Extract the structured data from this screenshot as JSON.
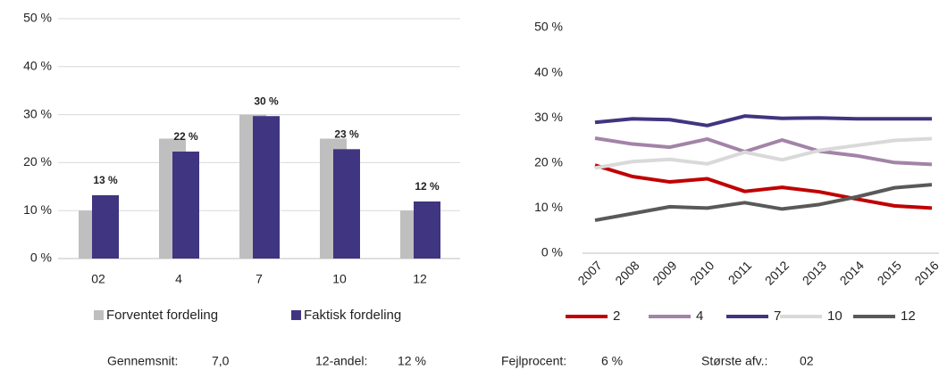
{
  "chart_data": [
    {
      "type": "bar",
      "categories": [
        "02",
        "4",
        "7",
        "10",
        "12"
      ],
      "series": [
        {
          "name": "Forventet fordeling",
          "color": "#bfbfbf",
          "values": [
            10,
            25,
            30,
            25,
            10
          ]
        },
        {
          "name": "Faktisk fordeling",
          "color": "#3f3580",
          "values": [
            13.2,
            22.3,
            29.7,
            22.8,
            11.9
          ],
          "value_labels": [
            "13 %",
            "22 %",
            "30 %",
            "23 %",
            "12 %"
          ]
        }
      ],
      "ylim": [
        0,
        50
      ],
      "yticks": [
        {
          "value": 0,
          "label": "0 %"
        },
        {
          "value": 10,
          "label": "10 %"
        },
        {
          "value": 20,
          "label": "20 %"
        },
        {
          "value": 30,
          "label": "30 %"
        },
        {
          "value": 40,
          "label": "40 %"
        },
        {
          "value": 50,
          "label": "50 %"
        }
      ],
      "grid": true,
      "legend": "bottom"
    },
    {
      "type": "line",
      "categories": [
        "2007",
        "2008",
        "2009",
        "2010",
        "2011",
        "2012",
        "2013",
        "2014",
        "2015",
        "2016"
      ],
      "series": [
        {
          "name": "2",
          "color": "#c00000",
          "values": [
            19.5,
            17,
            15.8,
            16.5,
            13.7,
            14.6,
            13.6,
            12,
            10.5,
            10
          ]
        },
        {
          "name": "4",
          "color": "#a383a8",
          "values": [
            25.5,
            24.2,
            23.5,
            25.3,
            22.5,
            25.1,
            22.6,
            21.6,
            20.1,
            19.7
          ]
        },
        {
          "name": "7",
          "color": "#3f3580",
          "values": [
            29,
            29.8,
            29.6,
            28.3,
            30.4,
            29.9,
            30,
            29.8,
            29.8,
            29.8
          ]
        },
        {
          "name": "10",
          "color": "#d9d9d9",
          "values": [
            18.9,
            20.3,
            20.8,
            19.8,
            22.4,
            20.7,
            22.8,
            23.9,
            25,
            25.4
          ]
        },
        {
          "name": "12",
          "color": "#595959",
          "values": [
            7.3,
            8.8,
            10.3,
            10,
            11.2,
            9.8,
            10.8,
            12.5,
            14.5,
            15.2
          ]
        }
      ],
      "ylim": [
        0,
        50
      ],
      "yticks": [
        {
          "value": 0,
          "label": "0 %"
        },
        {
          "value": 10,
          "label": "10 %"
        },
        {
          "value": 20,
          "label": "20 %"
        },
        {
          "value": 30,
          "label": "30 %"
        },
        {
          "value": 40,
          "label": "40 %"
        },
        {
          "value": 50,
          "label": "50 %"
        }
      ],
      "grid": false,
      "legend": "bottom"
    }
  ],
  "stats": [
    {
      "label": "Gennemsnit:",
      "value": "7,0"
    },
    {
      "label": "12-andel:",
      "value": "12 %"
    },
    {
      "label": "Fejlprocent:",
      "value": "6 %"
    },
    {
      "label": "Største afv.:",
      "value": "02"
    }
  ]
}
